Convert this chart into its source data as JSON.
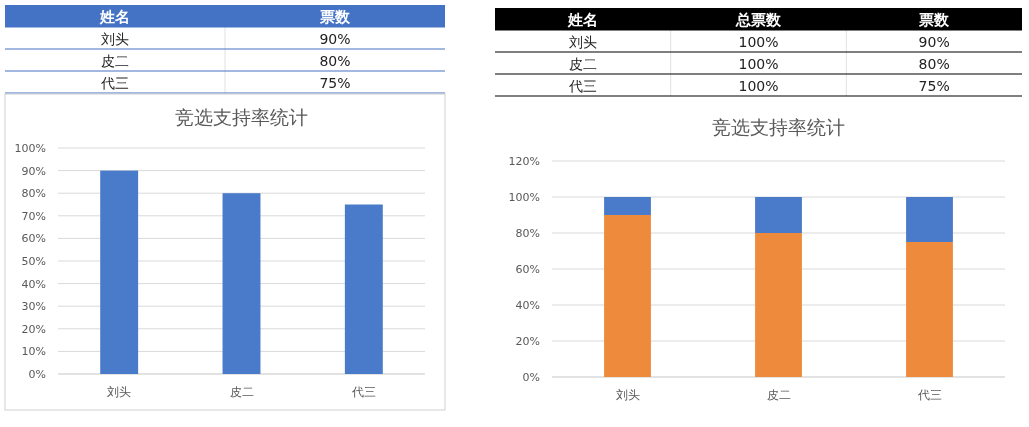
{
  "chart_data": [
    {
      "type": "other",
      "ylabel": "姓名",
      "categories": [
        "票数"
      ],
      "y_categories": [
        "刘头",
        "皮二",
        "代三"
      ],
      "cell_labels": [
        [
          "90%"
        ],
        [
          "80%"
        ],
        [
          "75%"
        ]
      ]
    },
    {
      "type": "bar",
      "title": "竞选支持率统计",
      "categories": [
        "刘头",
        "皮二",
        "代三"
      ],
      "values": [
        90,
        80,
        75
      ],
      "color": "#4a7bca",
      "ylim": [
        0,
        100
      ],
      "yticks": [
        {
          "value": 0,
          "label": "0%"
        },
        {
          "value": 10,
          "label": "10%"
        },
        {
          "value": 20,
          "label": "20%"
        },
        {
          "value": 30,
          "label": "30%"
        },
        {
          "value": 40,
          "label": "40%"
        },
        {
          "value": 50,
          "label": "50%"
        },
        {
          "value": 60,
          "label": "60%"
        },
        {
          "value": 70,
          "label": "70%"
        },
        {
          "value": 80,
          "label": "80%"
        },
        {
          "value": 90,
          "label": "90%"
        },
        {
          "value": 100,
          "label": "100%"
        }
      ],
      "grid": "y"
    },
    {
      "type": "other",
      "ylabel": "姓名",
      "categories": [
        "总票数",
        "票数"
      ],
      "y_categories": [
        "刘头",
        "皮二",
        "代三"
      ],
      "cell_labels": [
        [
          "100%",
          "90%"
        ],
        [
          "100%",
          "80%"
        ],
        [
          "100%",
          "75%"
        ]
      ]
    },
    {
      "type": "bar",
      "stacked": true,
      "title": "竞选支持率统计",
      "categories": [
        "刘头",
        "皮二",
        "代三"
      ],
      "series": [
        {
          "color": "#ed8a3c",
          "values": [
            90,
            80,
            75
          ]
        },
        {
          "color": "#4a7bca",
          "values": [
            10,
            20,
            25
          ]
        }
      ],
      "ylim": [
        0,
        120
      ],
      "yticks": [
        {
          "value": 0,
          "label": "0%"
        },
        {
          "value": 20,
          "label": "20%"
        },
        {
          "value": 40,
          "label": "40%"
        },
        {
          "value": 60,
          "label": "60%"
        },
        {
          "value": 80,
          "label": "80%"
        },
        {
          "value": 100,
          "label": "100%"
        },
        {
          "value": 120,
          "label": "120%"
        }
      ],
      "grid": "y"
    }
  ]
}
